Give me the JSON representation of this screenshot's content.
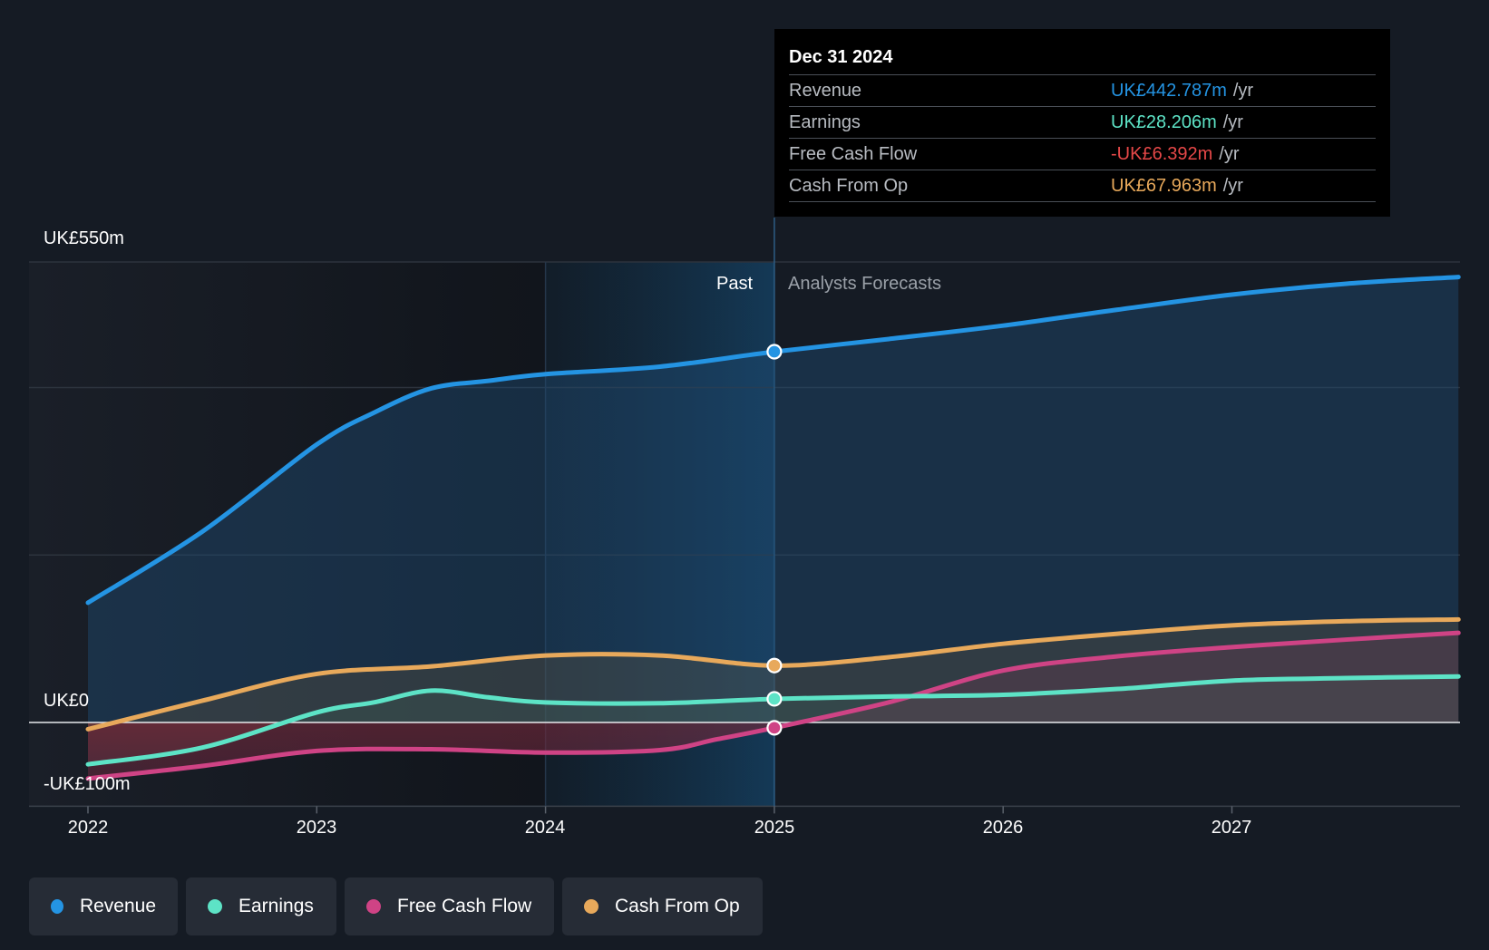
{
  "chart_data": {
    "type": "area",
    "currency": "UK£",
    "y_axis_labels": [
      "UK£550m",
      "UK£0",
      "-UK£100m"
    ],
    "ylim": [
      -100,
      550
    ],
    "x_ticks": [
      "2022",
      "2023",
      "2024",
      "2025",
      "2026",
      "2027"
    ],
    "xlim": [
      2021.75,
      2027.99
    ],
    "past_label": "Past",
    "forecast_label": "Analysts Forecasts",
    "divider_x": 2025.0,
    "series": [
      {
        "name": "Revenue",
        "color": "#2494e3",
        "points": [
          [
            2022.0,
            143
          ],
          [
            2022.5,
            228
          ],
          [
            2023.0,
            332
          ],
          [
            2023.25,
            370
          ],
          [
            2023.5,
            399
          ],
          [
            2023.75,
            408
          ],
          [
            2024.0,
            416
          ],
          [
            2024.5,
            425
          ],
          [
            2025.0,
            442.787
          ],
          [
            2025.5,
            458
          ],
          [
            2026.0,
            474
          ],
          [
            2026.5,
            493
          ],
          [
            2027.0,
            511
          ],
          [
            2027.5,
            524
          ],
          [
            2027.99,
            532
          ]
        ]
      },
      {
        "name": "Earnings",
        "color": "#5de3c6",
        "points": [
          [
            2022.0,
            -50
          ],
          [
            2022.5,
            -30
          ],
          [
            2023.0,
            12
          ],
          [
            2023.25,
            24
          ],
          [
            2023.5,
            38
          ],
          [
            2023.75,
            30
          ],
          [
            2024.0,
            24
          ],
          [
            2024.5,
            23
          ],
          [
            2025.0,
            28.206
          ],
          [
            2025.5,
            31
          ],
          [
            2026.0,
            33
          ],
          [
            2026.5,
            40
          ],
          [
            2027.0,
            50
          ],
          [
            2027.5,
            53
          ],
          [
            2027.99,
            55
          ]
        ]
      },
      {
        "name": "Free Cash Flow",
        "color": "#cf4385",
        "points": [
          [
            2022.0,
            -67
          ],
          [
            2022.5,
            -52
          ],
          [
            2023.0,
            -34
          ],
          [
            2023.5,
            -32
          ],
          [
            2024.0,
            -36
          ],
          [
            2024.5,
            -33
          ],
          [
            2024.75,
            -20
          ],
          [
            2025.0,
            -6.392
          ],
          [
            2025.5,
            24
          ],
          [
            2026.0,
            62
          ],
          [
            2026.5,
            79
          ],
          [
            2027.0,
            90
          ],
          [
            2027.5,
            99
          ],
          [
            2027.99,
            107
          ]
        ]
      },
      {
        "name": "Cash From Op",
        "color": "#e8a95b",
        "points": [
          [
            2022.0,
            -8
          ],
          [
            2022.5,
            26
          ],
          [
            2023.0,
            58
          ],
          [
            2023.5,
            67
          ],
          [
            2024.0,
            80
          ],
          [
            2024.5,
            80
          ],
          [
            2025.0,
            67.963
          ],
          [
            2025.5,
            78
          ],
          [
            2026.0,
            94
          ],
          [
            2026.5,
            106
          ],
          [
            2027.0,
            116
          ],
          [
            2027.5,
            121
          ],
          [
            2027.99,
            123
          ]
        ]
      }
    ],
    "highlight": {
      "x": 2025.0,
      "date": "Dec 31 2024",
      "rows": [
        {
          "name": "Revenue",
          "value": "UK£442.787m",
          "unit": "/yr",
          "color": "#2494e3"
        },
        {
          "name": "Earnings",
          "value": "UK£28.206m",
          "unit": "/yr",
          "color": "#5de3c6"
        },
        {
          "name": "Free Cash Flow",
          "value": "-UK£6.392m",
          "unit": "/yr",
          "color": "#e64848"
        },
        {
          "name": "Cash From Op",
          "value": "UK£67.963m",
          "unit": "/yr",
          "color": "#e8a95b"
        }
      ]
    }
  },
  "legend": {
    "items": [
      {
        "label": "Revenue",
        "color": "#2494e3"
      },
      {
        "label": "Earnings",
        "color": "#5de3c6"
      },
      {
        "label": "Free Cash Flow",
        "color": "#cf4385"
      },
      {
        "label": "Cash From Op",
        "color": "#e8a95b"
      }
    ]
  }
}
